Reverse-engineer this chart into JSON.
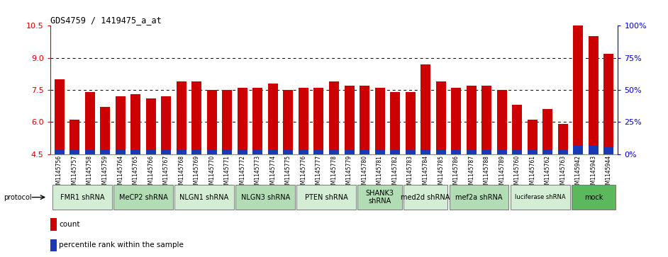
{
  "title": "GDS4759 / 1419475_a_at",
  "samples": [
    "GSM1145756",
    "GSM1145757",
    "GSM1145758",
    "GSM1145759",
    "GSM1145764",
    "GSM1145765",
    "GSM1145766",
    "GSM1145767",
    "GSM1145768",
    "GSM1145769",
    "GSM1145770",
    "GSM1145771",
    "GSM1145772",
    "GSM1145773",
    "GSM1145774",
    "GSM1145775",
    "GSM1145776",
    "GSM1145777",
    "GSM1145778",
    "GSM1145779",
    "GSM1145780",
    "GSM1145781",
    "GSM1145782",
    "GSM1145783",
    "GSM1145784",
    "GSM1145785",
    "GSM1145786",
    "GSM1145787",
    "GSM1145788",
    "GSM1145789",
    "GSM1145760",
    "GSM1145761",
    "GSM1145762",
    "GSM1145763",
    "GSM1145942",
    "GSM1145943",
    "GSM1145944"
  ],
  "counts": [
    8.0,
    6.1,
    7.4,
    6.7,
    7.2,
    7.3,
    7.1,
    7.2,
    7.9,
    7.9,
    7.5,
    7.5,
    7.6,
    7.6,
    7.8,
    7.5,
    7.6,
    7.6,
    7.9,
    7.7,
    7.7,
    7.6,
    7.4,
    7.4,
    8.7,
    7.9,
    7.6,
    7.7,
    7.7,
    7.5,
    6.8,
    6.1,
    6.6,
    5.9,
    10.5,
    10.0,
    9.2
  ],
  "percentiles_pct": [
    3,
    3,
    3,
    3,
    4,
    3,
    4,
    3,
    4,
    4,
    3,
    3,
    4,
    3,
    4,
    3,
    4,
    3,
    4,
    3,
    3,
    3,
    3,
    3,
    3,
    4,
    3,
    3,
    3,
    3,
    3,
    3,
    3,
    3,
    7,
    7,
    6
  ],
  "protocols": [
    {
      "label": "FMR1 shRNA",
      "start": 0,
      "end": 4,
      "color": "#d4edd5"
    },
    {
      "label": "MeCP2 shRNA",
      "start": 4,
      "end": 8,
      "color": "#b2ddb4"
    },
    {
      "label": "NLGN1 shRNA",
      "start": 8,
      "end": 12,
      "color": "#d4edd5"
    },
    {
      "label": "NLGN3 shRNA",
      "start": 12,
      "end": 16,
      "color": "#b2ddb4"
    },
    {
      "label": "PTEN shRNA",
      "start": 16,
      "end": 20,
      "color": "#d4edd5"
    },
    {
      "label": "SHANK3\nshRNA",
      "start": 20,
      "end": 23,
      "color": "#b2ddb4"
    },
    {
      "label": "med2d shRNA",
      "start": 23,
      "end": 26,
      "color": "#d4edd5"
    },
    {
      "label": "mef2a shRNA",
      "start": 26,
      "end": 30,
      "color": "#b2ddb4"
    },
    {
      "label": "luciferase shRNA",
      "start": 30,
      "end": 34,
      "color": "#d4edd5"
    },
    {
      "label": "mock",
      "start": 34,
      "end": 37,
      "color": "#5cb85c"
    }
  ],
  "bar_color": "#cc0000",
  "percentile_color": "#1a3ab5",
  "ylim_left": [
    4.5,
    10.5
  ],
  "yticks_left": [
    4.5,
    6.0,
    7.5,
    9.0,
    10.5
  ],
  "yticks_right": [
    0,
    25,
    50,
    75,
    100
  ],
  "ylabel_color_left": "#cc0000",
  "ylabel_color_right": "#0000cc"
}
